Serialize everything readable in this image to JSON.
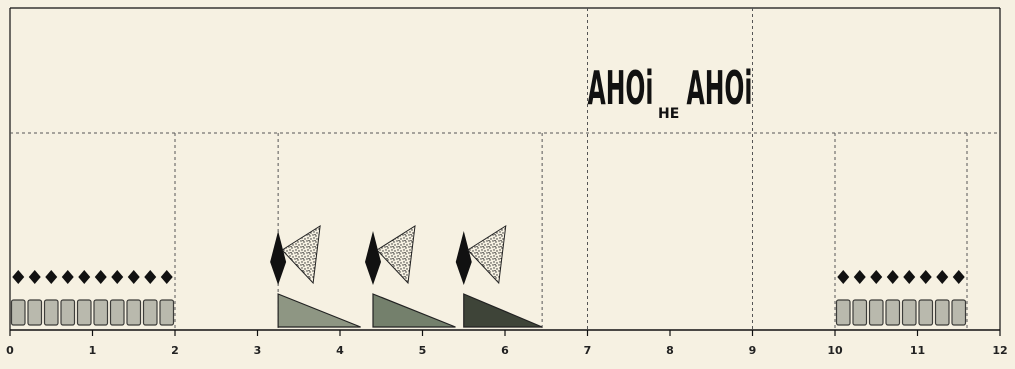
{
  "diagram": {
    "type": "graphic-score",
    "colors": {
      "paper": "#f6f1e2",
      "ink": "#111111",
      "grid": "#555555",
      "rect_fill": "#b9b9ad",
      "triangle_fill_1": "#8e9683",
      "triangle_fill_2": "#74806c",
      "triangle_fill_3": "#3e4438"
    },
    "axis": {
      "min": 0,
      "max": 12,
      "tick_labels": [
        "0",
        "1",
        "2",
        "3",
        "4",
        "5",
        "6",
        "7",
        "8",
        "9",
        "10",
        "11",
        "12"
      ]
    },
    "text_events": [
      {
        "text": "AHOi",
        "time": 7
      },
      {
        "text": "HE",
        "time": 8
      },
      {
        "text": "AHOi",
        "time": 8.2
      }
    ],
    "sound_events": [
      {
        "name": "diamond-row",
        "start": 0,
        "end": 2,
        "count": 10
      },
      {
        "name": "rectangle-row",
        "start": 0,
        "end": 2,
        "count": 10
      },
      {
        "name": "diamond-row",
        "start": 10,
        "end": 11.6,
        "count": 8
      },
      {
        "name": "rectangle-row",
        "start": 10,
        "end": 11.6,
        "count": 8
      },
      {
        "name": "cone-group",
        "time": 3.25
      },
      {
        "name": "cone-group",
        "time": 4.4
      },
      {
        "name": "cone-group",
        "time": 5.5
      },
      {
        "name": "ramp-triangle",
        "start": 3.25,
        "end": 4.25,
        "shade": 1
      },
      {
        "name": "ramp-triangle",
        "start": 4.4,
        "end": 5.4,
        "shade": 2
      },
      {
        "name": "ramp-triangle",
        "start": 5.5,
        "end": 6.45,
        "shade": 3
      }
    ],
    "section_markers": [
      2,
      3.25,
      6.45,
      7,
      9,
      10,
      11.6
    ]
  }
}
